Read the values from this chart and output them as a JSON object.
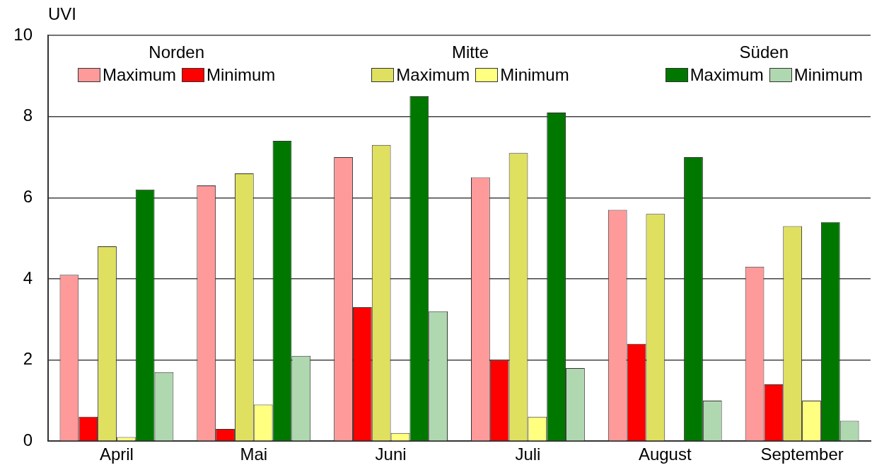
{
  "chart_data": {
    "type": "bar",
    "ylabel": "UVI",
    "categories": [
      "April",
      "Mai",
      "Juni",
      "Juli",
      "August",
      "September"
    ],
    "series": [
      {
        "name": "Maximum",
        "color": "#ff9a9a",
        "values": [
          4.1,
          6.3,
          7.0,
          6.5,
          5.7,
          4.3
        ]
      },
      {
        "name": "Minimum",
        "color": "#ff0000",
        "values": [
          0.6,
          0.3,
          3.3,
          2.0,
          2.4,
          1.4
        ]
      },
      {
        "name": "Maximum",
        "color": "#e0e060",
        "values": [
          4.8,
          6.6,
          7.3,
          7.1,
          5.6,
          5.3
        ]
      },
      {
        "name": "Minimum",
        "color": "#ffff80",
        "values": [
          0.1,
          0.9,
          0.2,
          0.6,
          null,
          1.0
        ]
      },
      {
        "name": "Maximum",
        "color": "#007800",
        "values": [
          6.2,
          7.4,
          8.5,
          8.1,
          7.0,
          5.4
        ]
      },
      {
        "name": "Minimum",
        "color": "#b0d8b0",
        "values": [
          1.7,
          2.1,
          3.2,
          1.8,
          1.0,
          0.5
        ]
      }
    ],
    "annotations": [
      "Norden",
      "Mitte",
      "Süden"
    ],
    "ylim": [
      0,
      10
    ],
    "yticks": [
      0,
      2,
      4,
      6,
      8,
      10
    ],
    "grid": "y",
    "legend": "top"
  }
}
